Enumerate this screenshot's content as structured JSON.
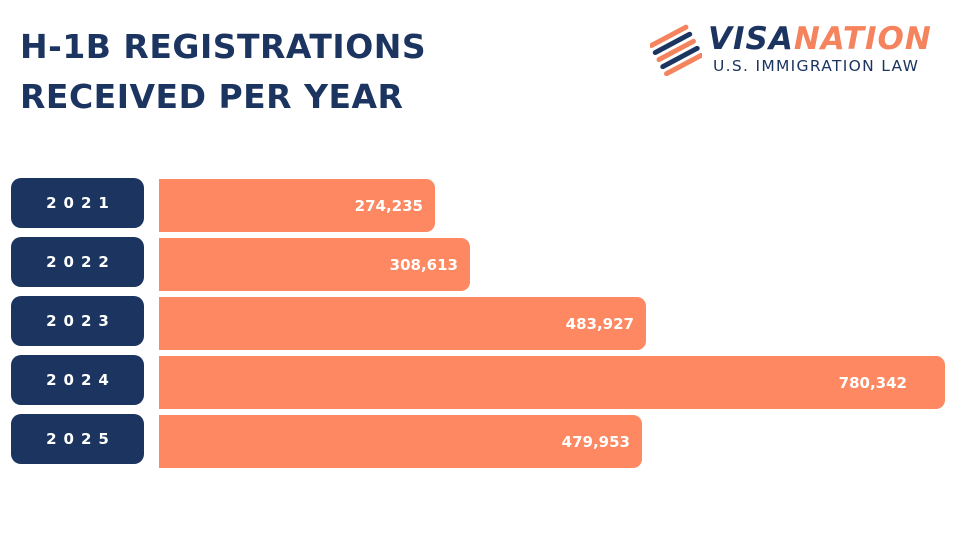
{
  "title": {
    "line1": "H-1B REGISTRATIONS",
    "line2": "RECEIVED PER YEAR"
  },
  "logo": {
    "word_part1": "VISA",
    "word_part2": "NATION",
    "subtitle": "U.S. IMMIGRATION LAW",
    "colors": {
      "navy": "#1b3460",
      "orange": "#f5835e"
    }
  },
  "colors": {
    "bar": "#fd8861",
    "pill": "#1b3460",
    "text_light": "#ffffff"
  },
  "chart_data": {
    "type": "bar",
    "orientation": "horizontal",
    "title": "H-1B REGISTRATIONS RECEIVED PER YEAR",
    "categories": [
      "2021",
      "2022",
      "2023",
      "2024",
      "2025"
    ],
    "values": [
      274235,
      308613,
      483927,
      780342,
      479953
    ],
    "value_labels": [
      "274,235",
      "308,613",
      "483,927",
      "780,342",
      "479,953"
    ],
    "xlim": [
      0,
      780342
    ],
    "grid": false,
    "legend": "none"
  }
}
